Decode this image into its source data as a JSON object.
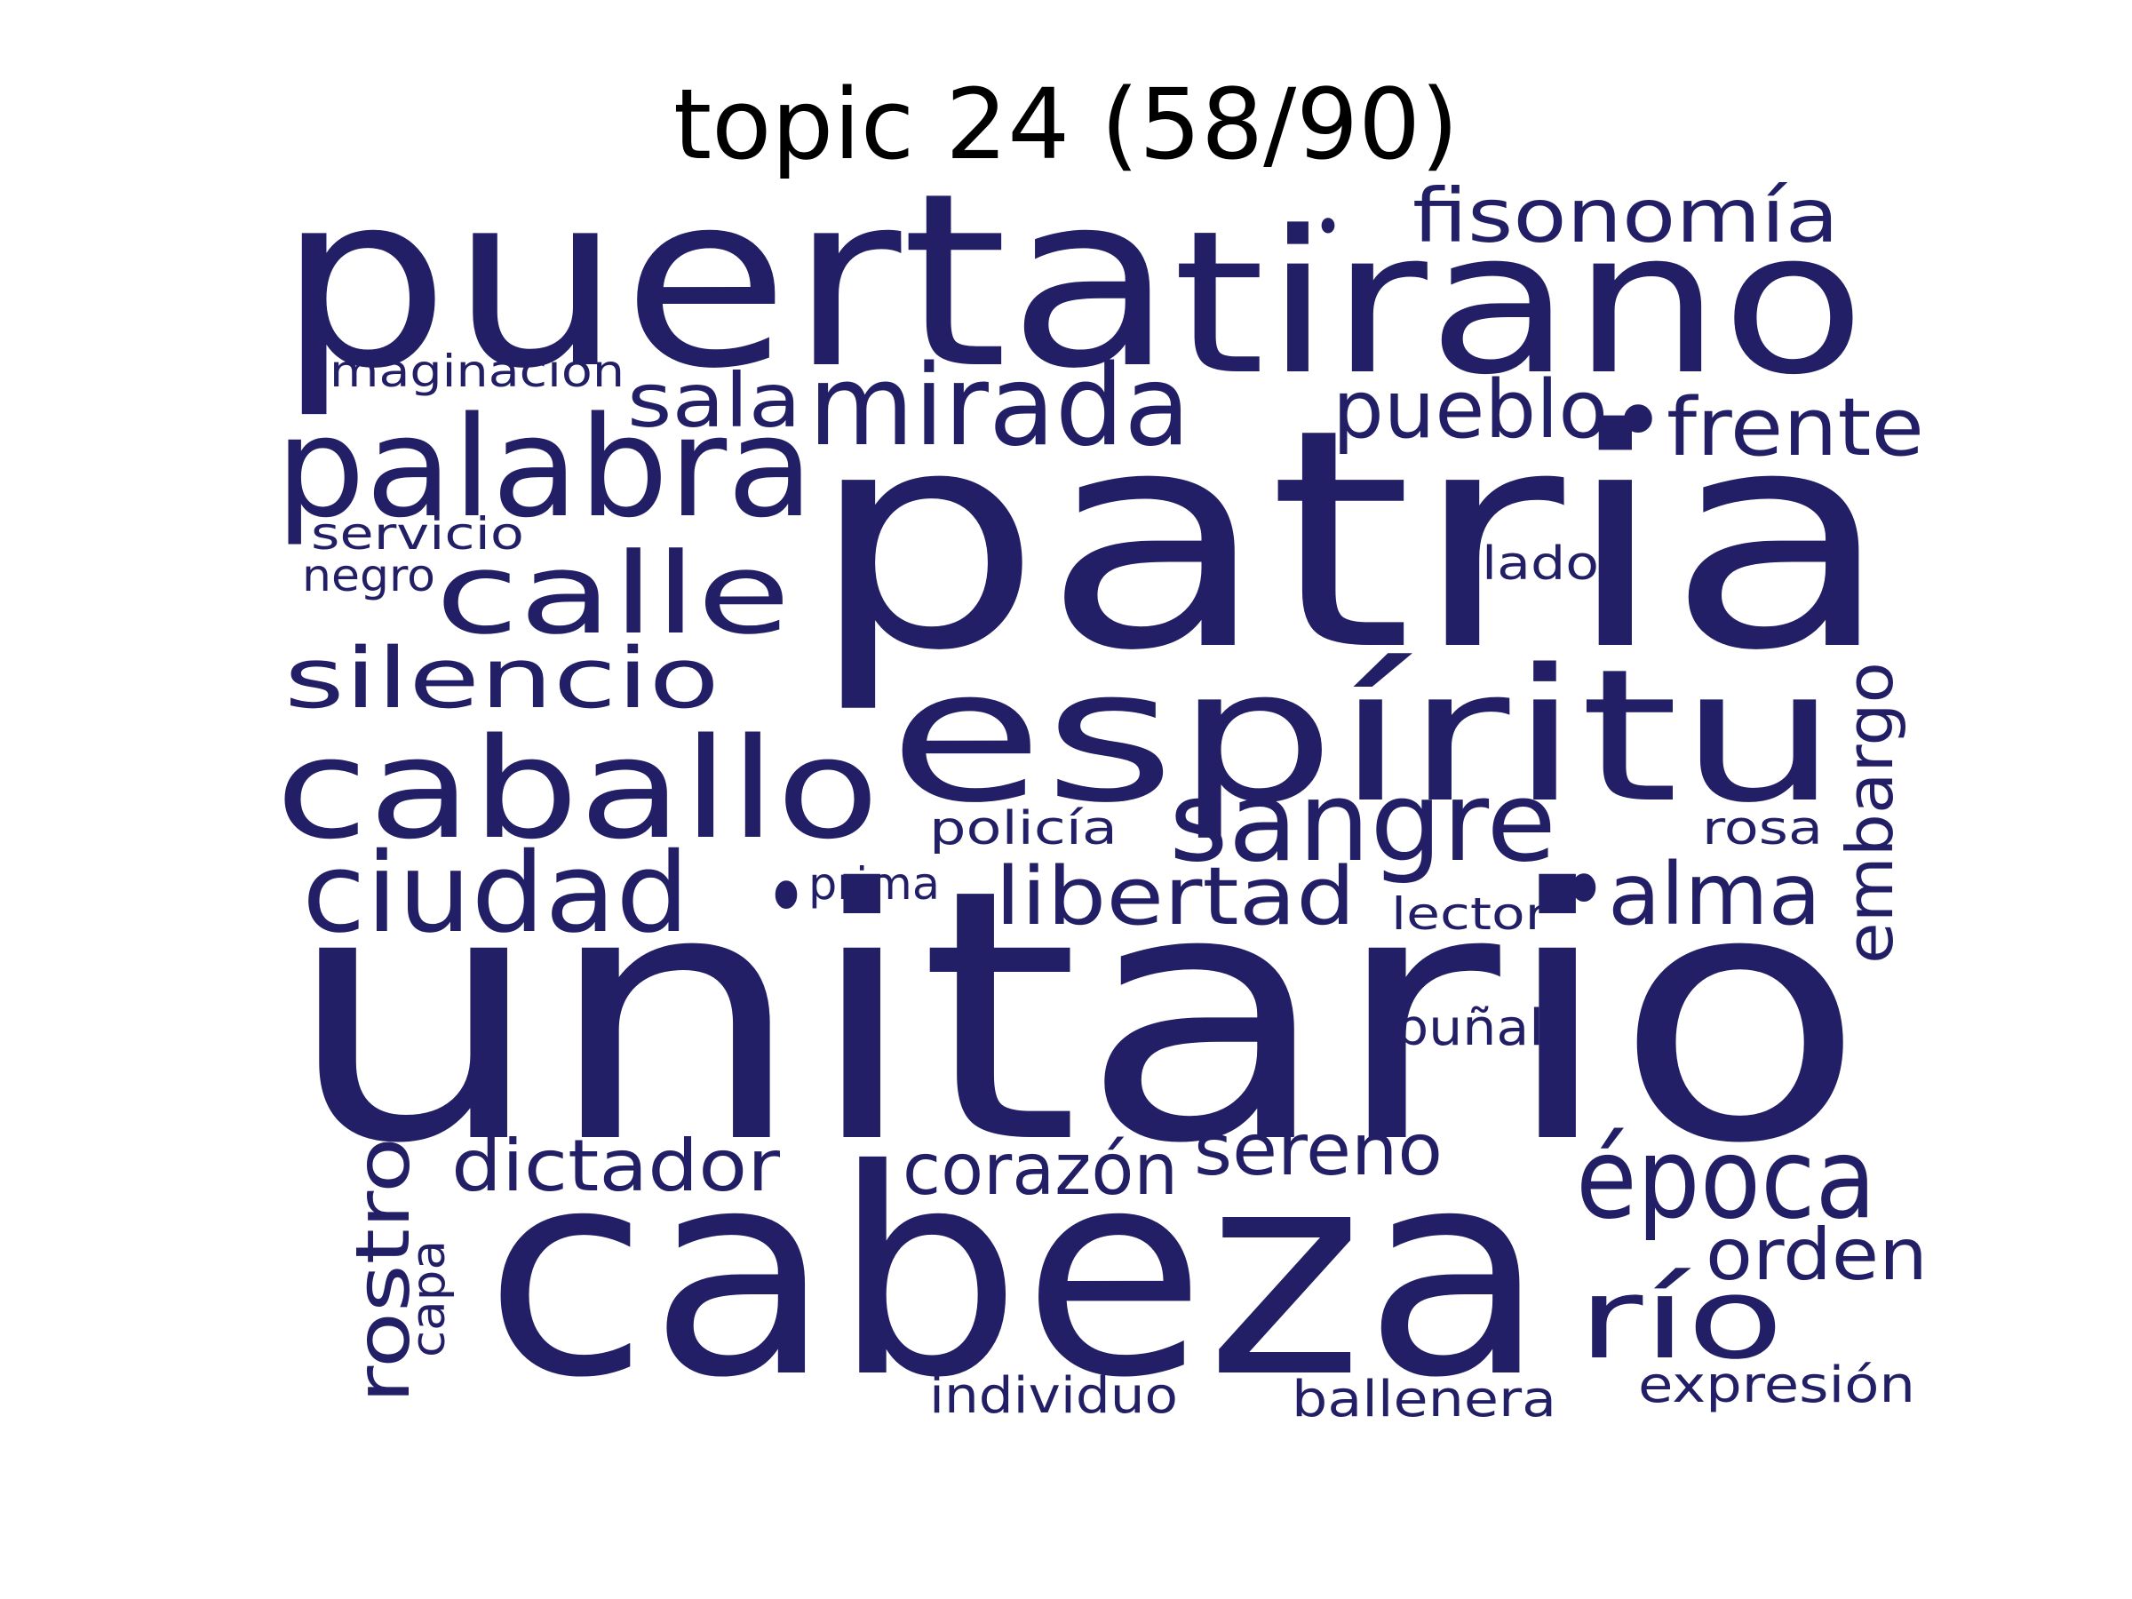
{
  "title": "topic 24 (58/90)",
  "word_color": "#221f66",
  "words": {
    "unitario": "unitario",
    "patria": "patria",
    "cabeza": "cabeza",
    "puerta": "puerta",
    "tirano": "tirano",
    "espiritu": "espíritu",
    "caballo": "caballo",
    "palabra": "palabra",
    "mirada": "mirada",
    "sangre": "sangre",
    "calle": "calle",
    "ciudad": "ciudad",
    "epoca": "época",
    "rio": "río",
    "alma": "alma",
    "silencio": "silencio",
    "fisonomia": "fisonomía",
    "frente": "frente",
    "pueblo": "pueblo",
    "libertad": "libertad",
    "embargo": "embargo",
    "sala": "sala",
    "dictador": "dictador",
    "corazon": "corazón",
    "sereno": "sereno",
    "orden": "orden",
    "rostro": "rostro",
    "expresion": "expresión",
    "ballenera": "ballenera",
    "individuo": "individuo",
    "imaginacion": "imaginación",
    "servicio": "servicio",
    "negro": "negro",
    "lado": "lado",
    "policia": "policía",
    "rosa": "rosa",
    "prima": "prima",
    "lector": "lector",
    "punal": "puñal",
    "capa": "capa",
    "dot1": "•",
    "dot2": "•",
    "dot3": "•",
    "dot4": "•"
  }
}
